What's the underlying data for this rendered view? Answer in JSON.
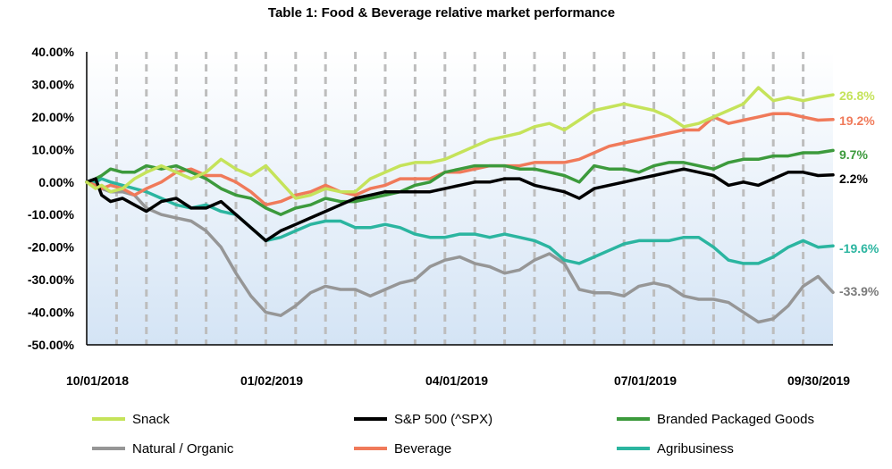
{
  "chart_data": {
    "type": "line",
    "title": "Table 1: Food & Beverage relative market performance",
    "xlabel": "",
    "ylabel": "",
    "ylim": [
      -50,
      40
    ],
    "y_ticks": [
      "40.00%",
      "30.00%",
      "20.00%",
      "10.00%",
      "0.00%",
      "-10.00%",
      "-20.00%",
      "-30.00%",
      "-40.00%",
      "-50.00%"
    ],
    "x_ticks": [
      "10/01/2018",
      "01/02/2019",
      "04/01/2019",
      "07/01/2019",
      "09/30/2019"
    ],
    "grid": "vertical dashed",
    "legend_position": "bottom",
    "series": [
      {
        "name": "Snack",
        "color": "#C5E35A",
        "end_label": "26.8%",
        "x": [
          0,
          3,
          5,
          8,
          12,
          16,
          20,
          25,
          30,
          35,
          40,
          45,
          50,
          55,
          60,
          65,
          70,
          75,
          80,
          85,
          90,
          95,
          100,
          105,
          110,
          115,
          120,
          125,
          130,
          135,
          140,
          145,
          150,
          155,
          160,
          165,
          170,
          175,
          180,
          185,
          190,
          195,
          200,
          205,
          210,
          215,
          220,
          225,
          230,
          235,
          240,
          245,
          250
        ],
        "values": [
          0,
          -2,
          -1,
          -3,
          -2,
          1,
          3,
          5,
          3,
          1,
          3,
          7,
          4,
          2,
          5,
          0,
          -5,
          -4,
          -2,
          -3,
          -3,
          1,
          3,
          5,
          6,
          6,
          7,
          9,
          11,
          13,
          14,
          15,
          17,
          18,
          16,
          19,
          22,
          23,
          24,
          23,
          22,
          20,
          17,
          18,
          20,
          22,
          24,
          29,
          25,
          26,
          25,
          26,
          26.8
        ]
      },
      {
        "name": "S&P 500 (^SPX)",
        "color": "#000000",
        "end_label": "2.2%",
        "x": [
          0,
          3,
          5,
          8,
          12,
          16,
          20,
          25,
          30,
          35,
          40,
          45,
          50,
          55,
          60,
          65,
          70,
          75,
          80,
          85,
          90,
          95,
          100,
          105,
          110,
          115,
          120,
          125,
          130,
          135,
          140,
          145,
          150,
          155,
          160,
          165,
          170,
          175,
          180,
          185,
          190,
          195,
          200,
          205,
          210,
          215,
          220,
          225,
          230,
          235,
          240,
          245,
          250
        ],
        "values": [
          0,
          1,
          -4,
          -6,
          -5,
          -7,
          -9,
          -6,
          -5,
          -8,
          -8,
          -6,
          -10,
          -14,
          -18,
          -15,
          -13,
          -11,
          -9,
          -7,
          -5,
          -4,
          -3,
          -3,
          -3,
          -3,
          -2,
          -1,
          0,
          0,
          1,
          1,
          -1,
          -2,
          -3,
          -5,
          -2,
          -1,
          0,
          1,
          2,
          3,
          4,
          3,
          2,
          -1,
          0,
          -1,
          1,
          3,
          3,
          2,
          2.2
        ]
      },
      {
        "name": "Branded Packaged Goods",
        "color": "#3C9A3C",
        "end_label": "9.7%",
        "x": [
          0,
          3,
          5,
          8,
          12,
          16,
          20,
          25,
          30,
          35,
          40,
          45,
          50,
          55,
          60,
          65,
          70,
          75,
          80,
          85,
          90,
          95,
          100,
          105,
          110,
          115,
          120,
          125,
          130,
          135,
          140,
          145,
          150,
          155,
          160,
          165,
          170,
          175,
          180,
          185,
          190,
          195,
          200,
          205,
          210,
          215,
          220,
          225,
          230,
          235,
          240,
          245,
          250
        ],
        "values": [
          0,
          1,
          2,
          4,
          3,
          3,
          5,
          4,
          5,
          3,
          1,
          -2,
          -4,
          -5,
          -8,
          -10,
          -8,
          -7,
          -5,
          -6,
          -6,
          -5,
          -4,
          -3,
          -1,
          0,
          3,
          4,
          5,
          5,
          5,
          4,
          4,
          3,
          2,
          0,
          5,
          4,
          4,
          3,
          5,
          6,
          6,
          5,
          4,
          6,
          7,
          7,
          8,
          8,
          9,
          9,
          9.7
        ]
      },
      {
        "name": "Natural / Organic",
        "color": "#969696",
        "end_label": "-33.9%",
        "x": [
          0,
          3,
          5,
          8,
          12,
          16,
          20,
          25,
          30,
          35,
          40,
          45,
          50,
          55,
          60,
          65,
          70,
          75,
          80,
          85,
          90,
          95,
          100,
          105,
          110,
          115,
          120,
          125,
          130,
          135,
          140,
          145,
          150,
          155,
          160,
          165,
          170,
          175,
          180,
          185,
          190,
          195,
          200,
          205,
          210,
          215,
          220,
          225,
          230,
          235,
          240,
          245,
          250
        ],
        "values": [
          0,
          -1,
          -2,
          -3,
          -3,
          -4,
          -8,
          -10,
          -11,
          -12,
          -15,
          -20,
          -28,
          -35,
          -40,
          -41,
          -38,
          -34,
          -32,
          -33,
          -33,
          -35,
          -33,
          -31,
          -30,
          -26,
          -24,
          -23,
          -25,
          -26,
          -28,
          -27,
          -24,
          -22,
          -25,
          -33,
          -34,
          -34,
          -35,
          -32,
          -31,
          -32,
          -35,
          -36,
          -36,
          -37,
          -40,
          -43,
          -42,
          -38,
          -32,
          -29,
          -33.9
        ]
      },
      {
        "name": "Beverage",
        "color": "#F07A5A",
        "end_label": "19.2%",
        "x": [
          0,
          3,
          5,
          8,
          12,
          16,
          20,
          25,
          30,
          35,
          40,
          45,
          50,
          55,
          60,
          65,
          70,
          75,
          80,
          85,
          90,
          95,
          100,
          105,
          110,
          115,
          120,
          125,
          130,
          135,
          140,
          145,
          150,
          155,
          160,
          165,
          170,
          175,
          180,
          185,
          190,
          195,
          200,
          205,
          210,
          215,
          220,
          225,
          230,
          235,
          240,
          245,
          250
        ],
        "values": [
          0,
          -1,
          -2,
          -1,
          -2,
          -4,
          -2,
          0,
          3,
          4,
          2,
          2,
          0,
          -3,
          -7,
          -6,
          -4,
          -3,
          -1,
          -3,
          -4,
          -2,
          -1,
          1,
          1,
          1,
          3,
          3,
          4,
          5,
          5,
          5,
          6,
          6,
          6,
          7,
          9,
          11,
          12,
          13,
          14,
          15,
          16,
          16,
          20,
          18,
          19,
          20,
          21,
          21,
          20,
          19,
          19.2
        ]
      },
      {
        "name": "Agribusiness",
        "color": "#2BB5A0",
        "end_label": "-19.6%",
        "x": [
          0,
          3,
          5,
          8,
          12,
          16,
          20,
          25,
          30,
          35,
          40,
          45,
          50,
          55,
          60,
          65,
          70,
          75,
          80,
          85,
          90,
          95,
          100,
          105,
          110,
          115,
          120,
          125,
          130,
          135,
          140,
          145,
          150,
          155,
          160,
          165,
          170,
          175,
          180,
          185,
          190,
          195,
          200,
          205,
          210,
          215,
          220,
          225,
          230,
          235,
          240,
          245,
          250
        ],
        "values": [
          0,
          0,
          1,
          0,
          -1,
          -2,
          -3,
          -5,
          -7,
          -8,
          -7,
          -9,
          -10,
          -14,
          -18,
          -17,
          -15,
          -13,
          -12,
          -12,
          -14,
          -14,
          -13,
          -14,
          -16,
          -17,
          -17,
          -16,
          -16,
          -17,
          -16,
          -17,
          -18,
          -20,
          -24,
          -25,
          -23,
          -21,
          -19,
          -18,
          -18,
          -18,
          -17,
          -17,
          -20,
          -24,
          -25,
          -25,
          -23,
          -20,
          -18,
          -20,
          -19.6
        ]
      }
    ]
  }
}
